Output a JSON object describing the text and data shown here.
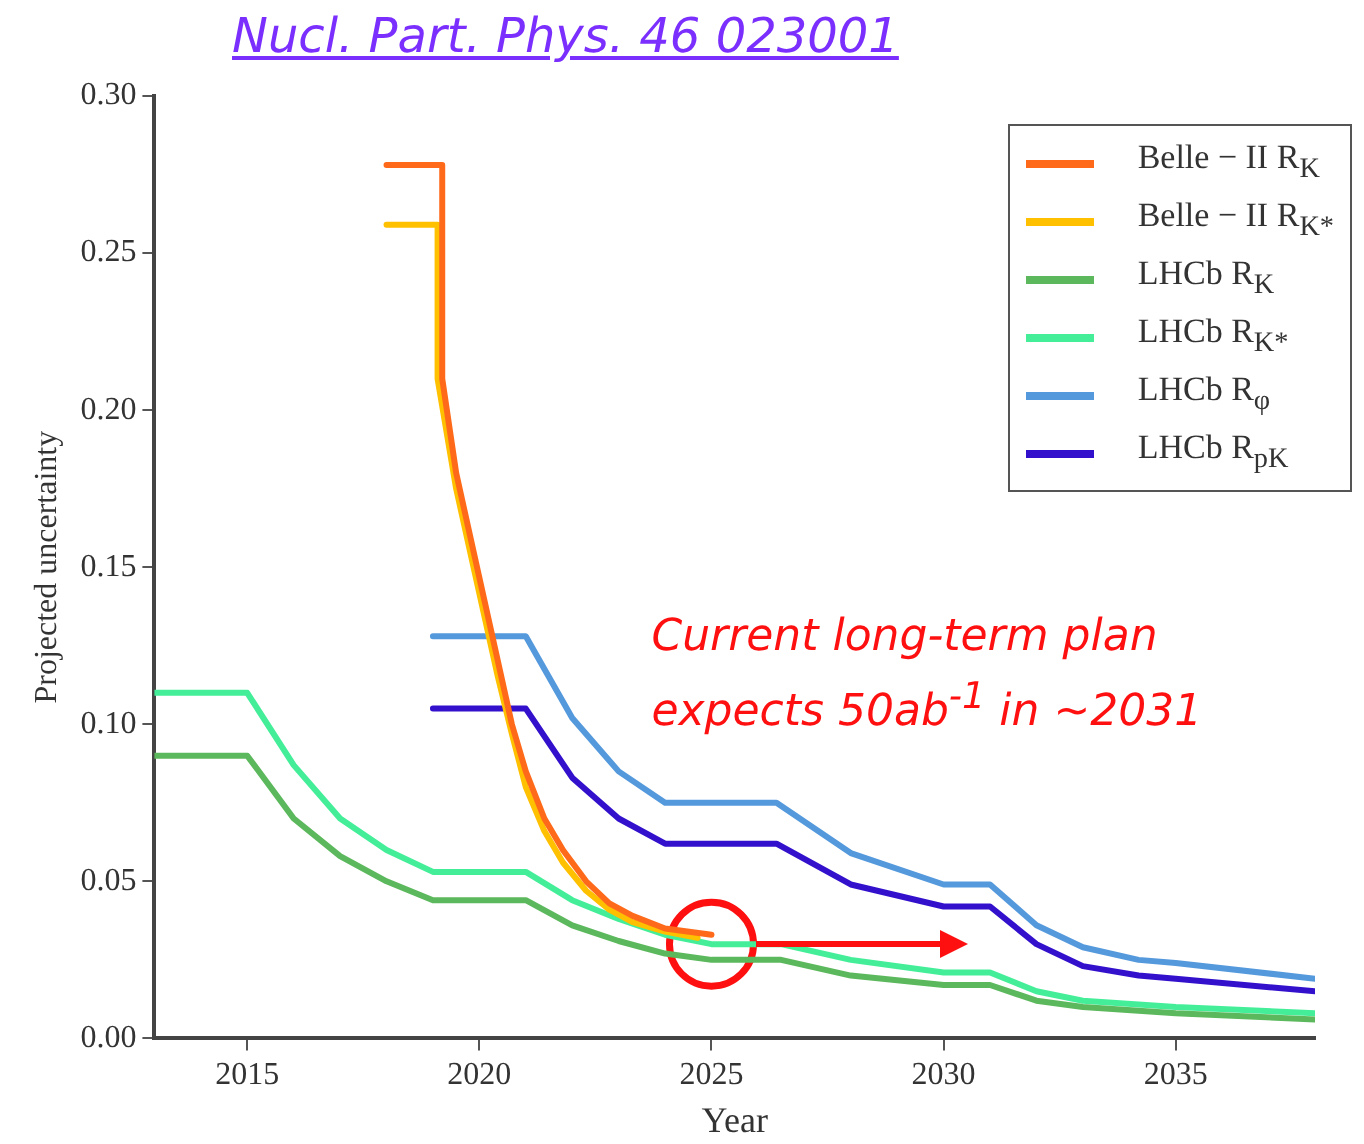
{
  "chart_data": {
    "type": "line",
    "title": "Nucl. Part. Phys. 46 023001",
    "xlabel": "Year",
    "ylabel": "Projected uncertainty",
    "xlim": [
      2013,
      2038
    ],
    "xticks": [
      2015,
      2020,
      2025,
      2030,
      2035
    ],
    "ylim": [
      0,
      0.3
    ],
    "yticks": [
      {
        "value": 0,
        "label": "0.00"
      },
      0.05,
      {
        "value": 0.1,
        "label": "0.10"
      },
      0.15,
      {
        "value": 0.2,
        "label": "0.20"
      },
      0.25,
      {
        "value": 0.3,
        "label": "0.30"
      }
    ],
    "grid": false,
    "legend": "top right",
    "marker": "none",
    "line_style": "solid",
    "annotations": [
      "Current long-term plan expects 50ab$^{-1}$ in ~2031"
    ],
    "series": [
      {
        "name": "Belle − II  R$_{K}$",
        "color": "#ff6a1a",
        "x": [
          2018,
          2019.2,
          2019.2,
          2019.5,
          2019.8,
          2020.1,
          2020.4,
          2020.7,
          2021.0,
          2021.4,
          2021.8,
          2022.3,
          2022.8,
          2023.3,
          2024,
          2025
        ],
        "values": [
          0.278,
          0.278,
          0.21,
          0.18,
          0.16,
          0.14,
          0.12,
          0.1,
          0.085,
          0.07,
          0.06,
          0.05,
          0.043,
          0.039,
          0.035,
          0.033
        ]
      },
      {
        "name": "Belle − II  R$_{K*}$",
        "color": "#ffc000",
        "x": [
          2018,
          2019.1,
          2019.1,
          2019.5,
          2019.8,
          2020.1,
          2020.4,
          2020.7,
          2021.0,
          2021.4,
          2021.8,
          2022.3,
          2022.8,
          2023.3,
          2024,
          2024.7
        ],
        "values": [
          0.259,
          0.259,
          0.21,
          0.175,
          0.155,
          0.135,
          0.115,
          0.097,
          0.08,
          0.066,
          0.056,
          0.047,
          0.041,
          0.037,
          0.034,
          0.032
        ]
      },
      {
        "name": "LHCb  R$_{K}$",
        "color": "#5cb85c",
        "x": [
          2013,
          2015,
          2016,
          2017,
          2018,
          2019,
          2021,
          2022,
          2023,
          2024,
          2025,
          2026.5,
          2028,
          2030,
          2031,
          2032,
          2033,
          2035,
          2038
        ],
        "values": [
          0.09,
          0.09,
          0.07,
          0.058,
          0.05,
          0.044,
          0.044,
          0.036,
          0.031,
          0.027,
          0.025,
          0.025,
          0.02,
          0.017,
          0.017,
          0.012,
          0.01,
          0.008,
          0.006
        ]
      },
      {
        "name": "LHCb  R$_{K*}$",
        "color": "#44ee99",
        "x": [
          2013,
          2015,
          2016,
          2017,
          2018,
          2019,
          2021,
          2022,
          2023,
          2024,
          2025,
          2026.5,
          2028,
          2030,
          2031,
          2032,
          2033,
          2035,
          2038
        ],
        "values": [
          0.11,
          0.11,
          0.087,
          0.07,
          0.06,
          0.053,
          0.053,
          0.044,
          0.038,
          0.033,
          0.03,
          0.03,
          0.025,
          0.021,
          0.021,
          0.015,
          0.012,
          0.01,
          0.008
        ]
      },
      {
        "name": "LHCb  R$_{φ}$",
        "color": "#5599dd",
        "x": [
          2019,
          2021,
          2022,
          2023,
          2024,
          2026.4,
          2028,
          2030,
          2031,
          2032,
          2033,
          2034.2,
          2035,
          2038
        ],
        "values": [
          0.128,
          0.128,
          0.102,
          0.085,
          0.075,
          0.075,
          0.059,
          0.049,
          0.049,
          0.036,
          0.029,
          0.025,
          0.024,
          0.019
        ]
      },
      {
        "type": "scatter",
        "marker": "circle",
        "color": "#ff1010",
        "x": [
          2025
        ],
        "values": [
          0.03
        ]
      },
      {
        "name": "LHCb  R$_{pK}$",
        "color": "#3311cc",
        "x": [
          2019,
          2021,
          2022,
          2023,
          2024,
          2026.4,
          2028,
          2030,
          2031,
          2032,
          2033,
          2034.2,
          2035,
          2038
        ],
        "values": [
          0.105,
          0.105,
          0.083,
          0.07,
          0.062,
          0.062,
          0.049,
          0.042,
          0.042,
          0.03,
          0.023,
          0.02,
          0.019,
          0.015
        ]
      }
    ]
  }
}
